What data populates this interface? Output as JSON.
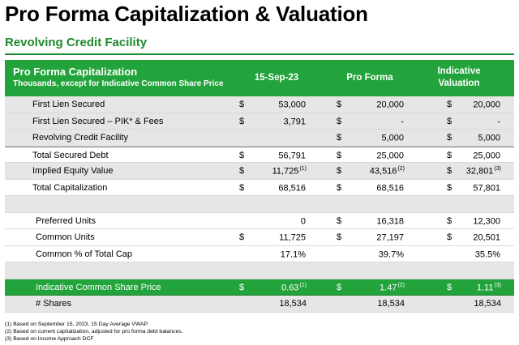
{
  "title": "Pro Forma Capitalization & Valuation",
  "subtitle": "Revolving Credit Facility",
  "table": {
    "header": {
      "title": "Pro Forma Capitalization",
      "subtitle": "Thousands, except for Indicative Common Share Price",
      "col1": "15-Sep-23",
      "col2": "Pro Forma",
      "col3_line1": "Indicative",
      "col3_line2": "Valuation"
    },
    "rows": [
      {
        "label": "First Lien Secured",
        "d1": "$",
        "v1": "53,000",
        "n1": "",
        "d2": "$",
        "v2": "20,000",
        "n2": "",
        "d3": "$",
        "v3": "20,000",
        "n3": ""
      },
      {
        "label": "First Lien Secured – PIK* & Fees",
        "d1": "$",
        "v1": "3,791",
        "n1": "",
        "d2": "$",
        "v2": "-",
        "n2": "",
        "d3": "$",
        "v3": "-",
        "n3": ""
      },
      {
        "label": "Revolving Credit Facility",
        "d1": "",
        "v1": "",
        "n1": "",
        "d2": "$",
        "v2": "5,000",
        "n2": "",
        "d3": "$",
        "v3": "5,000",
        "n3": ""
      },
      {
        "label": "Total Secured Debt",
        "d1": "$",
        "v1": "56,791",
        "n1": "",
        "d2": "$",
        "v2": "25,000",
        "n2": "",
        "d3": "$",
        "v3": "25,000",
        "n3": ""
      },
      {
        "label": "Implied Equity Value",
        "d1": "$",
        "v1": "11,725",
        "n1": "(1)",
        "d2": "$",
        "v2": "43,516",
        "n2": "(2)",
        "d3": "$",
        "v3": "32,801",
        "n3": "(3)"
      },
      {
        "label": "Total Capitalization",
        "d1": "$",
        "v1": "68,516",
        "n1": "",
        "d2": "$",
        "v2": "68,516",
        "n2": "",
        "d3": "$",
        "v3": "57,801",
        "n3": ""
      },
      {
        "label": "Preferred Units",
        "d1": "",
        "v1": "0",
        "n1": "",
        "d2": "$",
        "v2": "16,318",
        "n2": "",
        "d3": "$",
        "v3": "12,300",
        "n3": ""
      },
      {
        "label": "Common Units",
        "d1": "$",
        "v1": "11,725",
        "n1": "",
        "d2": "$",
        "v2": "27,197",
        "n2": "",
        "d3": "$",
        "v3": "20,501",
        "n3": ""
      },
      {
        "label": "Common % of Total Cap",
        "d1": "",
        "v1": "17.1%",
        "n1": "",
        "d2": "",
        "v2": "39.7%",
        "n2": "",
        "d3": "",
        "v3": "35.5%",
        "n3": ""
      },
      {
        "label": "Indicative Common Share Price",
        "d1": "$",
        "v1": "0.63",
        "n1": "(1)",
        "d2": "$",
        "v2": "1.47",
        "n2": "(2)",
        "d3": "$",
        "v3": "1.11",
        "n3": "(3)"
      },
      {
        "label": "# Shares",
        "d1": "",
        "v1": "18,534",
        "n1": "",
        "d2": "",
        "v2": "18,534",
        "n2": "",
        "d3": "",
        "v3": "18,534",
        "n3": ""
      }
    ]
  },
  "notes": [
    "(1) Based on September 15, 2023, 15 Day Average VWAP.",
    "(2) Based on current capitalization, adjusted for pro forma debt balances.",
    "(3) Based on Income Approach DCF"
  ]
}
